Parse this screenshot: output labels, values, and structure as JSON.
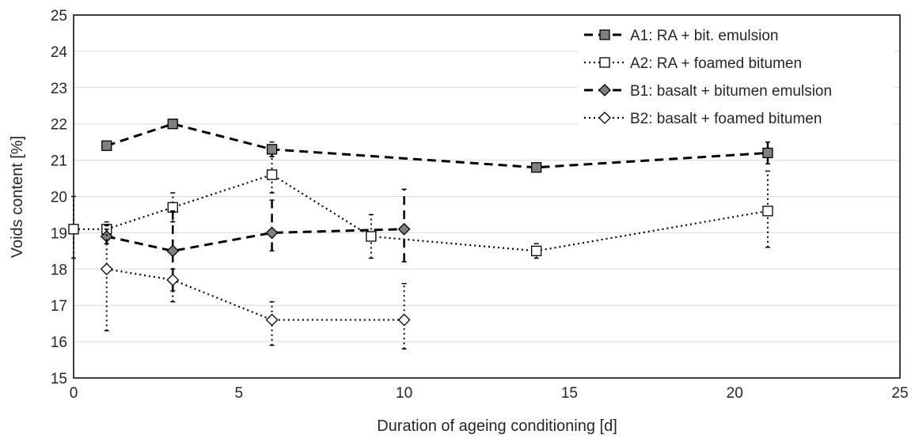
{
  "chart_data": {
    "type": "scatter",
    "title": "",
    "xlabel": "Duration of ageing conditioning [d]",
    "ylabel": "Voids content [%]",
    "xlim": [
      0,
      25
    ],
    "ylim": [
      15,
      25
    ],
    "xticks": [
      0,
      5,
      10,
      15,
      20,
      25
    ],
    "yticks": [
      15,
      16,
      17,
      18,
      19,
      20,
      21,
      22,
      23,
      24,
      25
    ],
    "grid": "horizontal",
    "legend_position": "top-right",
    "series": [
      {
        "name": "A1: RA + bit. emulsion",
        "line": "dashed",
        "marker": "square",
        "marker_fill": "#808080",
        "x": [
          1,
          3,
          6,
          14,
          21
        ],
        "y": [
          21.4,
          22.0,
          21.3,
          20.8,
          21.2
        ],
        "err_low": [
          21.4,
          22.0,
          21.1,
          20.8,
          20.9
        ],
        "err_high": [
          21.4,
          22.0,
          21.5,
          20.8,
          21.5
        ]
      },
      {
        "name": "A2: RA + foamed bitumen",
        "line": "dotted",
        "marker": "square",
        "marker_fill": "#ffffff",
        "x": [
          0,
          1,
          3,
          6,
          9,
          14,
          21
        ],
        "y": [
          19.1,
          19.1,
          19.7,
          20.6,
          18.9,
          18.5,
          19.6
        ],
        "err_low": [
          18.3,
          18.9,
          19.3,
          20.1,
          18.3,
          18.3,
          18.6
        ],
        "err_high": [
          20.0,
          19.3,
          20.1,
          21.1,
          19.5,
          18.7,
          20.7
        ]
      },
      {
        "name": "B1: basalt + bitumen emulsion",
        "line": "dashed",
        "marker": "diamond",
        "marker_fill": "#808080",
        "x": [
          1,
          3,
          6,
          10
        ],
        "y": [
          18.9,
          18.5,
          19.0,
          19.1
        ],
        "err_low": [
          18.7,
          17.4,
          18.5,
          18.2
        ],
        "err_high": [
          19.1,
          19.6,
          19.9,
          20.2
        ]
      },
      {
        "name": "B2: basalt + foamed bitumen",
        "line": "dotted",
        "marker": "diamond",
        "marker_fill": "#ffffff",
        "x": [
          1,
          3,
          6,
          10
        ],
        "y": [
          18.0,
          17.7,
          16.6,
          16.6
        ],
        "err_low": [
          16.3,
          17.1,
          15.9,
          15.8
        ],
        "err_high": [
          19.2,
          18.0,
          17.1,
          17.6
        ]
      }
    ]
  }
}
